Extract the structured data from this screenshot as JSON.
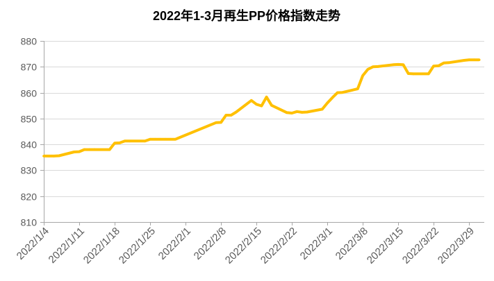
{
  "chart_data": {
    "type": "line",
    "title": "2022年1-3月再生PP价格指数走势",
    "x_axis_type": "date",
    "xlim": [
      "2022/1/4",
      "2022/4/1"
    ],
    "ylim": [
      810,
      880
    ],
    "x_ticks": [
      "2022/1/4",
      "2022/1/11",
      "2022/1/18",
      "2022/1/25",
      "2022/2/1",
      "2022/2/8",
      "2022/2/15",
      "2022/2/22",
      "2022/3/1",
      "2022/3/8",
      "2022/3/15",
      "2022/3/22",
      "2022/3/29"
    ],
    "y_ticks": [
      810,
      820,
      830,
      840,
      850,
      860,
      870,
      880
    ],
    "grid": {
      "horizontal": true,
      "vertical": false
    },
    "legend": "none",
    "x": [
      "2022/1/4",
      "2022/1/5",
      "2022/1/6",
      "2022/1/7",
      "2022/1/10",
      "2022/1/11",
      "2022/1/12",
      "2022/1/13",
      "2022/1/14",
      "2022/1/17",
      "2022/1/18",
      "2022/1/19",
      "2022/1/20",
      "2022/1/21",
      "2022/1/24",
      "2022/1/25",
      "2022/1/26",
      "2022/1/27",
      "2022/1/28",
      "2022/1/29",
      "2022/1/30",
      "2022/2/7",
      "2022/2/8",
      "2022/2/9",
      "2022/2/10",
      "2022/2/11",
      "2022/2/14",
      "2022/2/15",
      "2022/2/16",
      "2022/2/17",
      "2022/2/18",
      "2022/2/21",
      "2022/2/22",
      "2022/2/23",
      "2022/2/24",
      "2022/2/25",
      "2022/2/28",
      "2022/3/1",
      "2022/3/2",
      "2022/3/3",
      "2022/3/4",
      "2022/3/7",
      "2022/3/8",
      "2022/3/9",
      "2022/3/10",
      "2022/3/11",
      "2022/3/14",
      "2022/3/15",
      "2022/3/16",
      "2022/3/17",
      "2022/3/18",
      "2022/3/21",
      "2022/3/22",
      "2022/3/23",
      "2022/3/24",
      "2022/3/25",
      "2022/3/28",
      "2022/3/29",
      "2022/3/30",
      "2022/3/31"
    ],
    "series": [
      {
        "values": [
          835.5,
          835.5,
          835.5,
          835.6,
          837.1,
          837.2,
          838.0,
          838.0,
          838.0,
          838.0,
          840.5,
          840.6,
          841.3,
          841.3,
          841.3,
          842.0,
          842.0,
          842.0,
          842.0,
          842.0,
          842.0,
          848.4,
          848.5,
          851.3,
          851.3,
          852.5,
          857.0,
          855.5,
          854.9,
          858.3,
          855.1,
          852.3,
          852.1,
          852.7,
          852.4,
          852.5,
          853.6,
          856.0,
          858.1,
          860.0,
          860.1,
          861.5,
          866.6,
          869.0,
          870.0,
          870.1,
          870.8,
          870.9,
          870.8,
          867.4,
          867.3,
          867.3,
          870.3,
          870.4,
          871.5,
          871.6,
          872.5,
          872.7,
          872.7,
          872.7
        ]
      }
    ],
    "colors": {
      "line": "#FFC000",
      "grid": "#D9D9D9",
      "axis": "#A6A6A6",
      "text": "#595959",
      "title": "#000000",
      "background": "#FFFFFF"
    }
  }
}
